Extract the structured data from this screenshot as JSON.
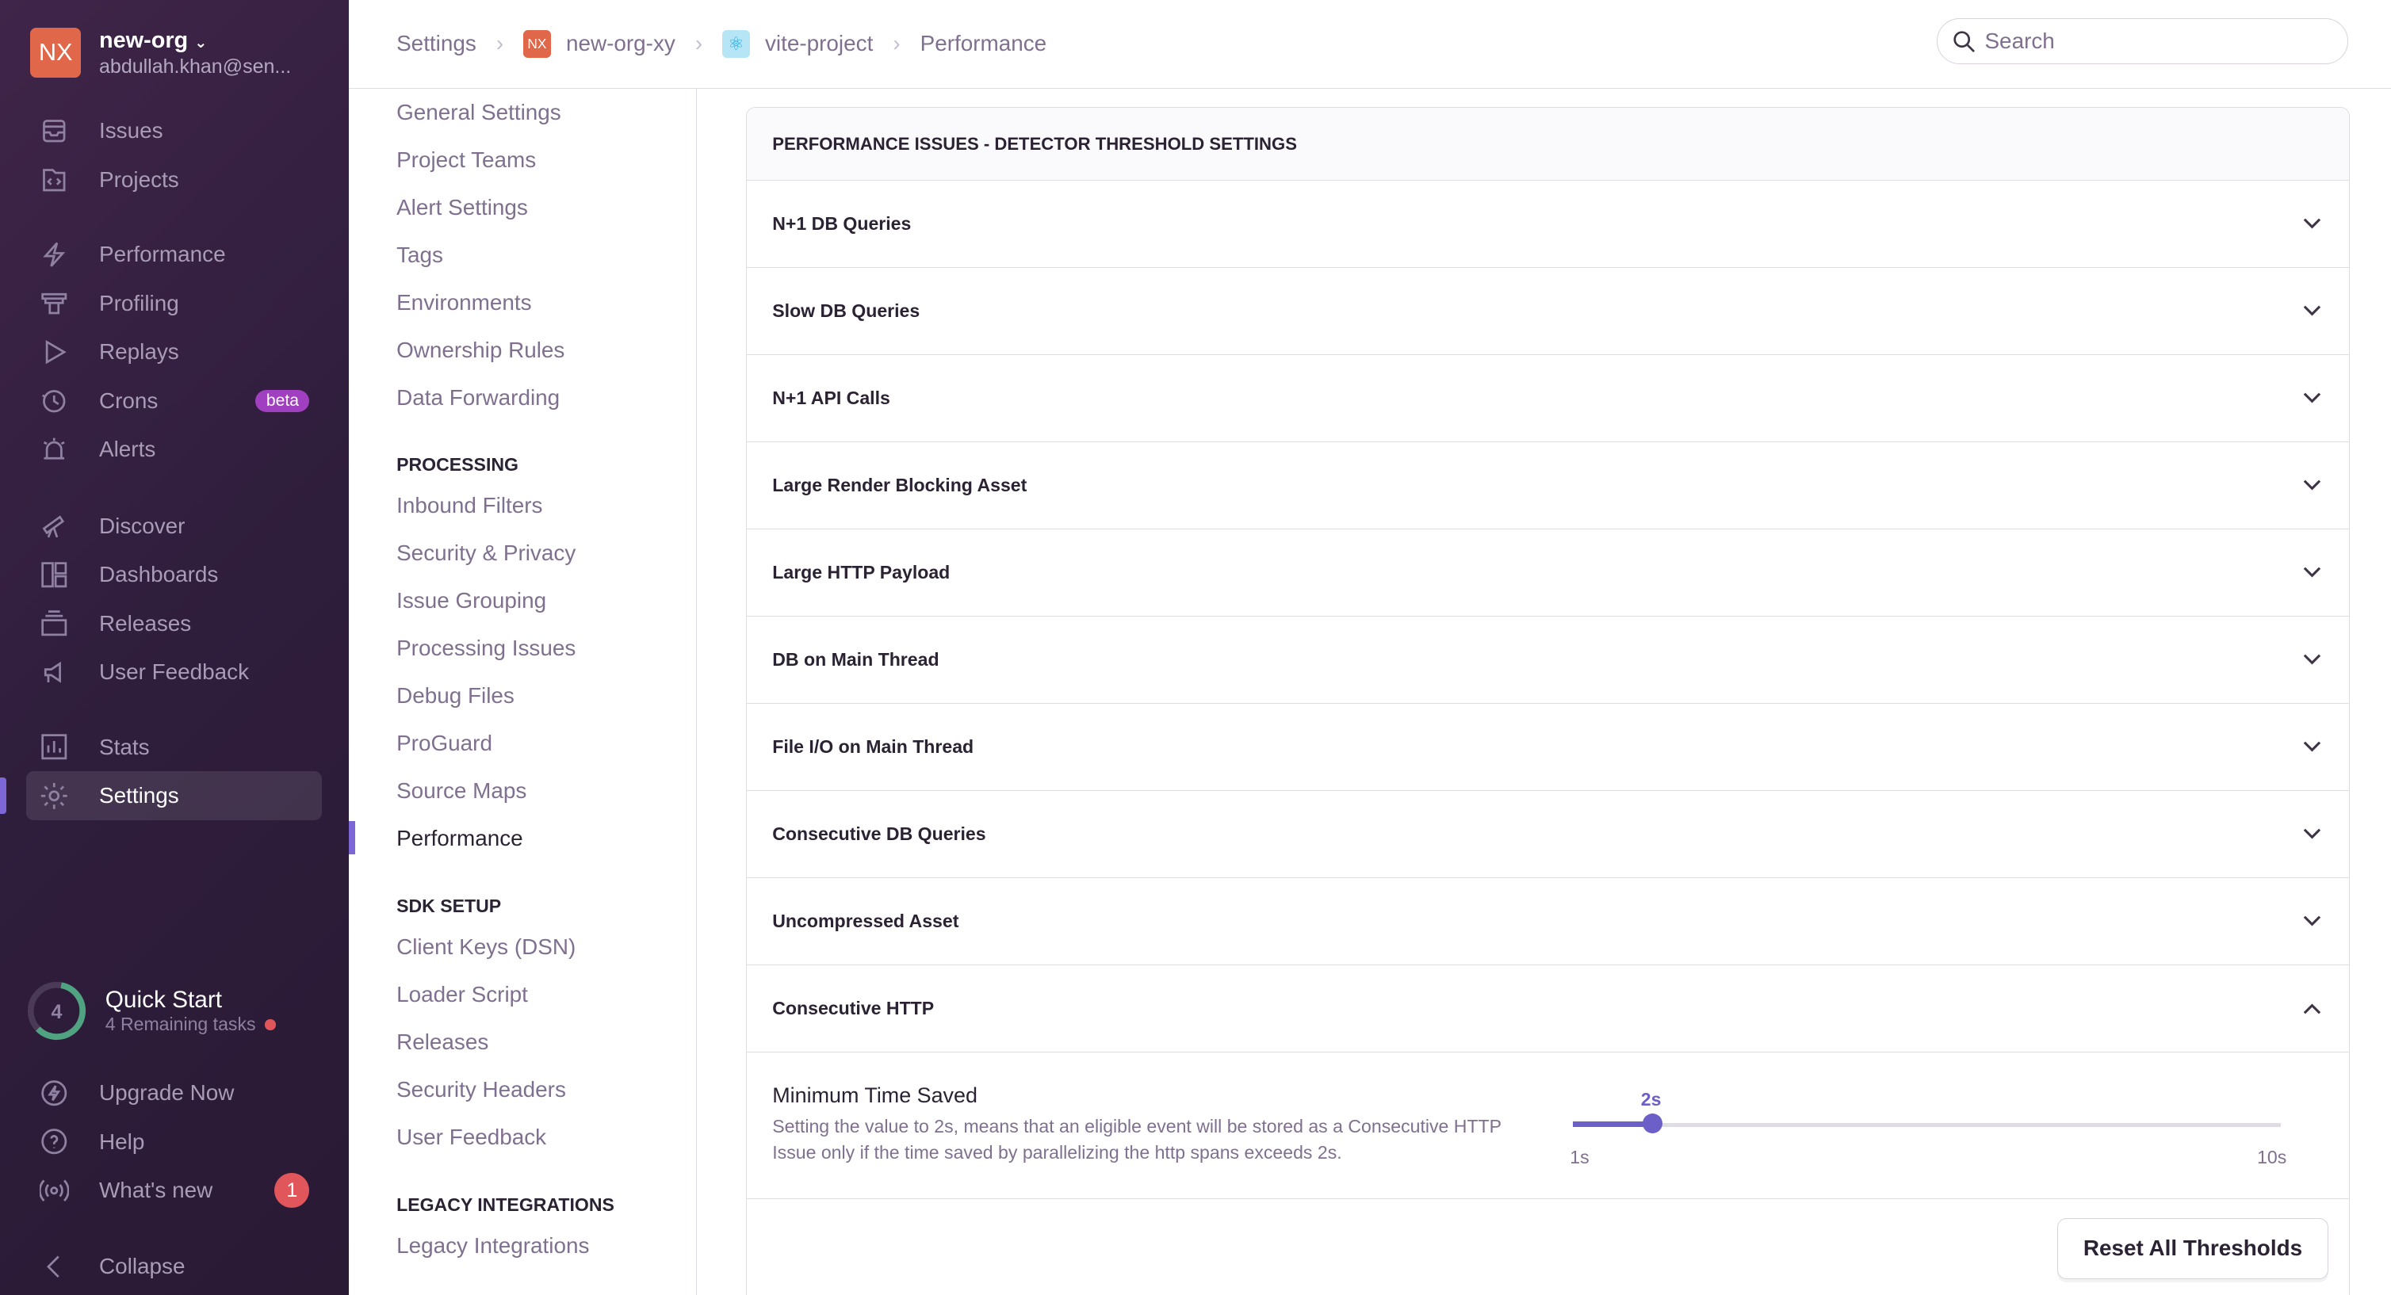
{
  "org": {
    "initials": "NX",
    "name": "new-org",
    "email": "abdullah.khan@sen..."
  },
  "sidebar": {
    "groups": [
      [
        {
          "label": "Issues",
          "icon": "issues-icon"
        },
        {
          "label": "Projects",
          "icon": "projects-icon"
        }
      ],
      [
        {
          "label": "Performance",
          "icon": "lightning-icon"
        },
        {
          "label": "Profiling",
          "icon": "profiling-icon"
        },
        {
          "label": "Replays",
          "icon": "play-icon"
        },
        {
          "label": "Crons",
          "icon": "clock-icon",
          "badge": "beta"
        },
        {
          "label": "Alerts",
          "icon": "siren-icon"
        }
      ],
      [
        {
          "label": "Discover",
          "icon": "telescope-icon"
        },
        {
          "label": "Dashboards",
          "icon": "dashboard-icon"
        },
        {
          "label": "Releases",
          "icon": "releases-icon"
        },
        {
          "label": "User Feedback",
          "icon": "megaphone-icon"
        }
      ],
      [
        {
          "label": "Stats",
          "icon": "stats-icon"
        },
        {
          "label": "Settings",
          "icon": "gear-icon",
          "active": true
        }
      ]
    ],
    "quickstart": {
      "count": "4",
      "title": "Quick Start",
      "subtitle": "4 Remaining tasks",
      "progress": 0.6
    },
    "bottom": [
      {
        "label": "Upgrade Now",
        "icon": "upgrade-icon"
      },
      {
        "label": "Help",
        "icon": "help-icon"
      },
      {
        "label": "What's new",
        "icon": "broadcast-icon",
        "badge": "1"
      }
    ],
    "collapse": "Collapse"
  },
  "breadcrumb": {
    "settings": "Settings",
    "org": "new-org-xy",
    "org_initials": "NX",
    "project": "vite-project",
    "page": "Performance"
  },
  "search": {
    "placeholder": "Search"
  },
  "settings_nav": {
    "items1": [
      "General Settings",
      "Project Teams",
      "Alert Settings",
      "Tags",
      "Environments",
      "Ownership Rules",
      "Data Forwarding"
    ],
    "processing": "PROCESSING",
    "items2": [
      "Inbound Filters",
      "Security & Privacy",
      "Issue Grouping",
      "Processing Issues",
      "Debug Files",
      "ProGuard",
      "Source Maps",
      "Performance"
    ],
    "sdk": "SDK SETUP",
    "items3": [
      "Client Keys (DSN)",
      "Loader Script",
      "Releases",
      "Security Headers",
      "User Feedback"
    ],
    "legacy": "LEGACY INTEGRATIONS",
    "items4": [
      "Legacy Integrations"
    ],
    "active": "Performance"
  },
  "panel": {
    "title": "PERFORMANCE ISSUES - DETECTOR THRESHOLD SETTINGS",
    "rows": [
      "N+1 DB Queries",
      "Slow DB Queries",
      "N+1 API Calls",
      "Large Render Blocking Asset",
      "Large HTTP Payload",
      "DB on Main Thread",
      "File I/O on Main Thread",
      "Consecutive DB Queries",
      "Uncompressed Asset",
      "Consecutive HTTP"
    ],
    "expanded": "Consecutive HTTP",
    "field": {
      "label": "Minimum Time Saved",
      "help": "Setting the value to 2s, means that an eligible event will be stored as a Consecutive HTTP Issue only if the time saved by parallelizing the http spans exceeds 2s.",
      "value": "2s",
      "min": "1s",
      "max": "10s",
      "value_num": 2,
      "min_num": 1,
      "max_num": 10
    },
    "reset": "Reset All Thresholds"
  },
  "colors": {
    "sidebar": "#2f1d3c",
    "accent": "#6c5fc7",
    "org": "#e0674a",
    "badge": "#e1565a",
    "progress": "#4fa380"
  }
}
